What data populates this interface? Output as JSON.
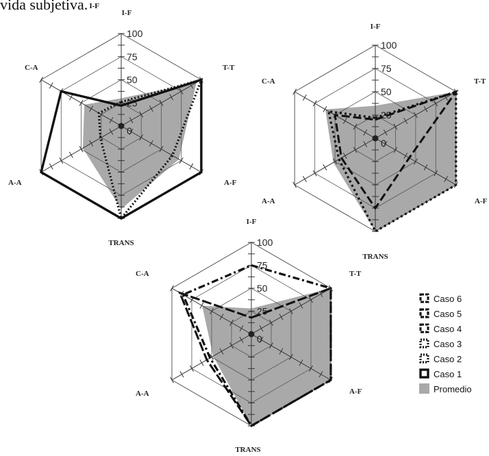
{
  "caption_fragment": "vida subjetiva.",
  "caption_suffix": "I-F",
  "chart_data": [
    {
      "type": "radar",
      "axes": [
        "I-F",
        "T-T",
        "A-F",
        "TRANS",
        "A-A",
        "C-A"
      ],
      "ticks": [
        0,
        25,
        50,
        75,
        100
      ],
      "range": [
        0,
        100
      ],
      "series": [
        {
          "name": "Promedio",
          "values": [
            30,
            94,
            72,
            90,
            48,
            46
          ]
        },
        {
          "name": "Caso 1",
          "values": [
            22,
            100,
            100,
            100,
            100,
            75
          ]
        },
        {
          "name": "Caso 2",
          "values": [
            26,
            100,
            64,
            100,
            26,
            28
          ]
        }
      ]
    },
    {
      "type": "radar",
      "axes": [
        "I-F",
        "T-T",
        "A-F",
        "TRANS",
        "A-A",
        "C-A"
      ],
      "ticks": [
        0,
        25,
        50,
        75,
        100
      ],
      "range": [
        0,
        100
      ],
      "series": [
        {
          "name": "Promedio",
          "values": [
            35,
            100,
            100,
            100,
            52,
            62
          ]
        },
        {
          "name": "Caso 3",
          "values": [
            22,
            100,
            100,
            100,
            45,
            58
          ]
        },
        {
          "name": "Caso 4",
          "values": [
            20,
            100,
            42,
            75,
            42,
            50
          ]
        }
      ]
    },
    {
      "type": "radar",
      "axes": [
        "I-F",
        "T-T",
        "A-F",
        "TRANS",
        "A-A",
        "C-A"
      ],
      "ticks": [
        0,
        25,
        50,
        75,
        100
      ],
      "range": [
        0,
        100
      ],
      "series": [
        {
          "name": "Promedio",
          "values": [
            28,
            100,
            100,
            100,
            48,
            62
          ]
        },
        {
          "name": "Caso 5",
          "values": [
            75,
            100,
            100,
            100,
            52,
            86
          ]
        },
        {
          "name": "Caso 6",
          "values": [
            18,
            100,
            100,
            100,
            56,
            90
          ]
        }
      ]
    }
  ],
  "legend": [
    {
      "name": "Caso 6",
      "symbol": "dashdot"
    },
    {
      "name": "Caso 5",
      "symbol": "longdash"
    },
    {
      "name": "Caso 4",
      "symbol": "dash"
    },
    {
      "name": "Caso 3",
      "symbol": "dot"
    },
    {
      "name": "Caso 2",
      "symbol": "fine-dot"
    },
    {
      "name": "Caso 1",
      "symbol": "solid"
    },
    {
      "name": "Promedio",
      "symbol": "fill"
    }
  ],
  "colors": {
    "promedio_fill": "#a9a9a9",
    "line": "#111111",
    "grid": "#333333"
  }
}
